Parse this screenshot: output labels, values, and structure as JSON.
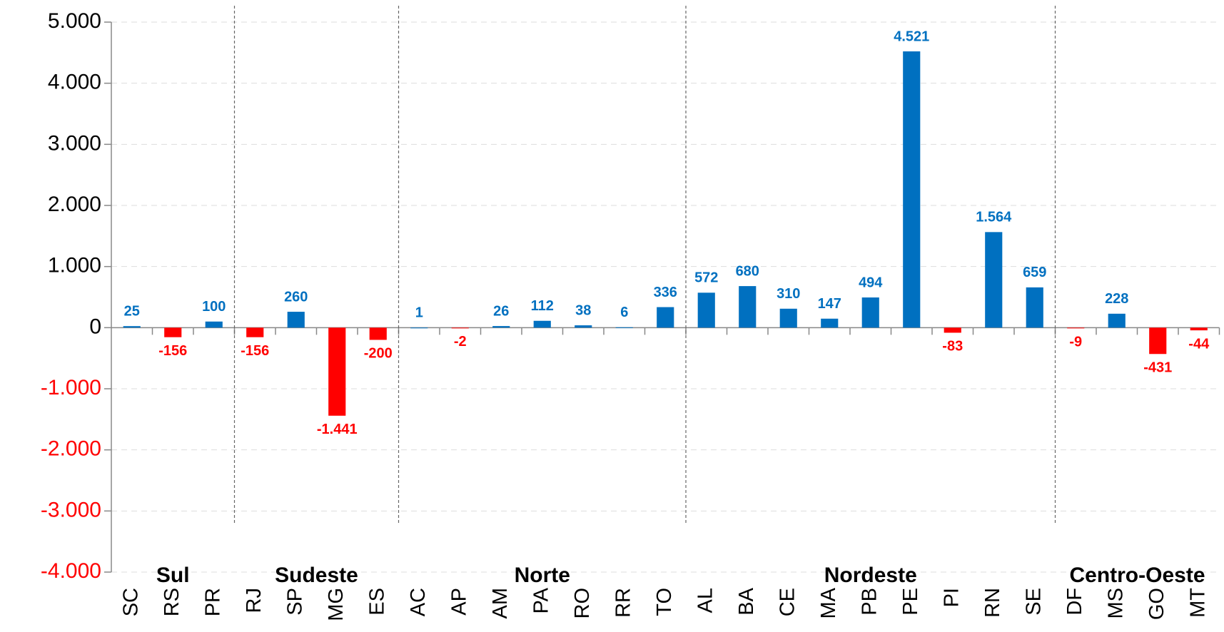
{
  "chart_data": {
    "type": "bar",
    "groups": [
      {
        "name": "Sul",
        "categories": [
          "SC",
          "RS",
          "PR"
        ],
        "values": [
          25,
          -156,
          100
        ]
      },
      {
        "name": "Sudeste",
        "categories": [
          "RJ",
          "SP",
          "MG",
          "ES"
        ],
        "values": [
          -156,
          260,
          -1441,
          -200
        ],
        "value_labels": [
          "-156",
          "260",
          "-1.441",
          "-200"
        ]
      },
      {
        "name": "Norte",
        "categories": [
          "AC",
          "AP",
          "AM",
          "PA",
          "RO",
          "RR",
          "TO"
        ],
        "values": [
          1,
          -2,
          26,
          112,
          38,
          6,
          336
        ]
      },
      {
        "name": "Nordeste",
        "categories": [
          "AL",
          "BA",
          "CE",
          "MA",
          "PB",
          "PE",
          "PI",
          "RN",
          "SE"
        ],
        "values": [
          572,
          680,
          310,
          147,
          494,
          4521,
          -83,
          1564,
          659
        ],
        "value_labels": [
          "572",
          "680",
          "310",
          "147",
          "494",
          "4.521",
          "-83",
          "1.564",
          "659"
        ]
      },
      {
        "name": "Centro-Oeste",
        "categories": [
          "DF",
          "MS",
          "GO",
          "MT"
        ],
        "values": [
          -9,
          228,
          -431,
          -44
        ]
      }
    ],
    "positive_color": "#0070c0",
    "negative_color": "#ff0000",
    "ylim": [
      -4000,
      5000
    ],
    "yticks": [
      {
        "value": -4000,
        "label": "-4.000"
      },
      {
        "value": -3000,
        "label": "-3.000"
      },
      {
        "value": -2000,
        "label": "-2.000"
      },
      {
        "value": -1000,
        "label": "-1.000"
      },
      0,
      {
        "value": 1000,
        "label": "1.000"
      },
      {
        "value": 2000,
        "label": "2.000"
      },
      {
        "value": 3000,
        "label": "3.000"
      },
      {
        "value": 4000,
        "label": "4.000"
      },
      {
        "value": 5000,
        "label": "5.000"
      }
    ],
    "grid": true
  }
}
